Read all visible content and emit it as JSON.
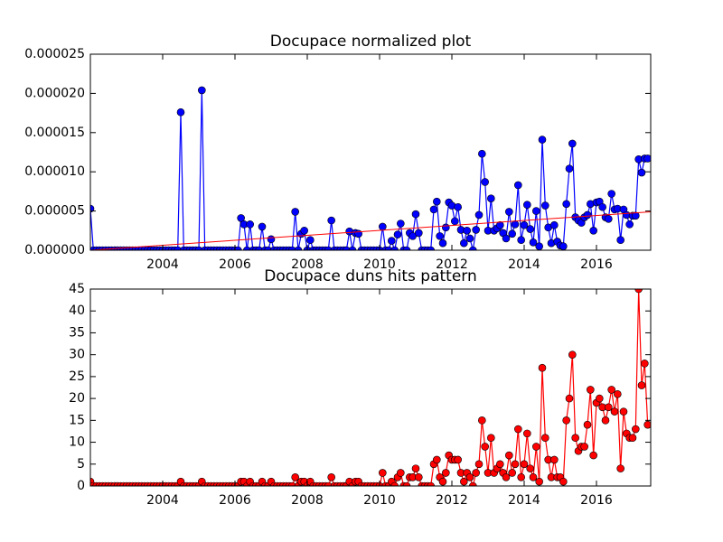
{
  "chart_data": {
    "type": "line",
    "x": [
      2002.0,
      2002.083,
      2002.167,
      2002.25,
      2002.333,
      2002.417,
      2002.5,
      2002.583,
      2002.667,
      2002.75,
      2002.833,
      2002.917,
      2003.0,
      2003.083,
      2003.167,
      2003.25,
      2003.333,
      2003.417,
      2003.5,
      2003.583,
      2003.667,
      2003.75,
      2003.833,
      2003.917,
      2004.0,
      2004.083,
      2004.167,
      2004.25,
      2004.333,
      2004.417,
      2004.5,
      2004.583,
      2004.667,
      2004.75,
      2004.833,
      2004.917,
      2005.0,
      2005.083,
      2005.167,
      2005.25,
      2005.333,
      2005.417,
      2005.5,
      2005.583,
      2005.667,
      2005.75,
      2005.833,
      2005.917,
      2006.0,
      2006.083,
      2006.167,
      2006.25,
      2006.333,
      2006.417,
      2006.5,
      2006.583,
      2006.667,
      2006.75,
      2006.833,
      2006.917,
      2007.0,
      2007.083,
      2007.167,
      2007.25,
      2007.333,
      2007.417,
      2007.5,
      2007.583,
      2007.667,
      2007.75,
      2007.833,
      2007.917,
      2008.0,
      2008.083,
      2008.167,
      2008.25,
      2008.333,
      2008.417,
      2008.5,
      2008.583,
      2008.667,
      2008.75,
      2008.833,
      2008.917,
      2009.0,
      2009.083,
      2009.167,
      2009.25,
      2009.333,
      2009.417,
      2009.5,
      2009.583,
      2009.667,
      2009.75,
      2009.833,
      2009.917,
      2010.0,
      2010.083,
      2010.167,
      2010.25,
      2010.333,
      2010.417,
      2010.5,
      2010.583,
      2010.667,
      2010.75,
      2010.833,
      2010.917,
      2011.0,
      2011.083,
      2011.167,
      2011.25,
      2011.333,
      2011.417,
      2011.5,
      2011.583,
      2011.667,
      2011.75,
      2011.833,
      2011.917,
      2012.0,
      2012.083,
      2012.167,
      2012.25,
      2012.333,
      2012.417,
      2012.5,
      2012.583,
      2012.667,
      2012.75,
      2012.833,
      2012.917,
      2013.0,
      2013.083,
      2013.167,
      2013.25,
      2013.333,
      2013.417,
      2013.5,
      2013.583,
      2013.667,
      2013.75,
      2013.833,
      2013.917,
      2014.0,
      2014.083,
      2014.167,
      2014.25,
      2014.333,
      2014.417,
      2014.5,
      2014.583,
      2014.667,
      2014.75,
      2014.833,
      2014.917,
      2015.0,
      2015.083,
      2015.167,
      2015.25,
      2015.333,
      2015.417,
      2015.5,
      2015.583,
      2015.667,
      2015.75,
      2015.833,
      2015.917,
      2016.0,
      2016.083,
      2016.167,
      2016.25,
      2016.333,
      2016.417,
      2016.5,
      2016.583,
      2016.667,
      2016.75,
      2016.833,
      2016.917,
      2017.0,
      2017.083,
      2017.167,
      2017.25,
      2017.333,
      2017.417
    ],
    "xlim": [
      2002.0,
      2017.5
    ],
    "xticks": [
      2004,
      2006,
      2008,
      2010,
      2012,
      2014,
      2016
    ],
    "panels": [
      {
        "title": "Docupace normalized plot",
        "ylim": [
          0,
          2.5e-05
        ],
        "yticks": [
          {
            "value": 0,
            "label": "0.000000"
          },
          {
            "value": 5e-06,
            "label": "0.000005"
          },
          {
            "value": 1e-05,
            "label": "0.000010"
          },
          {
            "value": 1.5e-05,
            "label": "0.000015"
          },
          {
            "value": 2e-05,
            "label": "0.000020"
          },
          {
            "value": 2.5e-05,
            "label": "0.000025"
          }
        ],
        "series": [
          {
            "color": "#0000ff",
            "values": [
              5.3e-06,
              0,
              0,
              0,
              0,
              0,
              0,
              0,
              0,
              0,
              0,
              0,
              0,
              0,
              0,
              0,
              0,
              0,
              0,
              0,
              0,
              0,
              0,
              0,
              0,
              0,
              0,
              0,
              0,
              0,
              1.76e-05,
              0,
              0,
              0,
              0,
              0,
              0,
              2.04e-05,
              0,
              0,
              0,
              0,
              0,
              0,
              0,
              0,
              0,
              0,
              0,
              0,
              4.1e-06,
              3.3e-06,
              0,
              3.3e-06,
              0,
              0,
              0,
              3e-06,
              0,
              0,
              1.4e-06,
              0,
              0,
              0,
              0,
              0,
              0,
              0,
              4.9e-06,
              0,
              2.1e-06,
              2.5e-06,
              0,
              1.3e-06,
              0,
              0,
              0,
              0,
              0,
              0,
              3.8e-06,
              0,
              0,
              0,
              0,
              0,
              2.4e-06,
              0,
              2.2e-06,
              2.1e-06,
              0,
              0,
              0,
              0,
              0,
              0,
              0,
              3e-06,
              0,
              0,
              1.2e-06,
              0,
              2e-06,
              3.4e-06,
              0,
              0,
              2.2e-06,
              1.8e-06,
              4.6e-06,
              2.2e-06,
              0,
              0,
              0,
              0,
              5.2e-06,
              6.2e-06,
              1.8e-06,
              9e-07,
              2.9e-06,
              6.1e-06,
              5.7e-06,
              3.7e-06,
              5.5e-06,
              2.6e-06,
              9e-07,
              2.5e-06,
              1.5e-06,
              0,
              2.6e-06,
              4.5e-06,
              1.23e-05,
              8.7e-06,
              2.5e-06,
              6.6e-06,
              2.5e-06,
              2.8e-06,
              3.2e-06,
              2.2e-06,
              1.5e-06,
              4.9e-06,
              2.1e-06,
              3.3e-06,
              8.3e-06,
              1.3e-06,
              3.2e-06,
              5.8e-06,
              2.7e-06,
              1e-06,
              5e-06,
              5e-07,
              1.41e-05,
              5.7e-06,
              2.9e-06,
              9e-07,
              3.2e-06,
              1.1e-06,
              6e-07,
              5e-07,
              5.9e-06,
              1.04e-05,
              1.36e-05,
              4.2e-06,
              3.8e-06,
              3.5e-06,
              4.2e-06,
              4.5e-06,
              5.9e-06,
              2.5e-06,
              6.1e-06,
              6.2e-06,
              5.5e-06,
              4.2e-06,
              4e-06,
              7.2e-06,
              5.2e-06,
              5.3e-06,
              1.3e-06,
              5.2e-06,
              4.5e-06,
              3.3e-06,
              4.4e-06,
              4.4e-06,
              1.16e-05,
              9.9e-06,
              1.17e-05,
              1.17e-05
            ]
          }
        ],
        "trend": {
          "x": [
            2002.0,
            2017.5
          ],
          "values": [
            0,
            4.9e-06
          ],
          "color": "#ff0000"
        }
      },
      {
        "title": "Docupace duns hits pattern",
        "ylim": [
          0,
          45
        ],
        "yticks": [
          0,
          5,
          10,
          15,
          20,
          25,
          30,
          35,
          40,
          45
        ],
        "series": [
          {
            "color": "#ff0000",
            "values": [
              1,
              0,
              0,
              0,
              0,
              0,
              0,
              0,
              0,
              0,
              0,
              0,
              0,
              0,
              0,
              0,
              0,
              0,
              0,
              0,
              0,
              0,
              0,
              0,
              0,
              0,
              0,
              0,
              0,
              0,
              1,
              0,
              0,
              0,
              0,
              0,
              0,
              1,
              0,
              0,
              0,
              0,
              0,
              0,
              0,
              0,
              0,
              0,
              0,
              0,
              1,
              1,
              0,
              1,
              0,
              0,
              0,
              1,
              0,
              0,
              1,
              0,
              0,
              0,
              0,
              0,
              0,
              0,
              2,
              0,
              1,
              1,
              0,
              1,
              0,
              0,
              0,
              0,
              0,
              0,
              2,
              0,
              0,
              0,
              0,
              0,
              1,
              0,
              1,
              1,
              0,
              0,
              0,
              0,
              0,
              0,
              0,
              3,
              0,
              0,
              1,
              0,
              2,
              3,
              0,
              0,
              2,
              2,
              4,
              2,
              0,
              0,
              0,
              0,
              5,
              6,
              2,
              1,
              3,
              7,
              6,
              6,
              6,
              3,
              1,
              3,
              2,
              0,
              3,
              5,
              15,
              9,
              3,
              11,
              3,
              4,
              5,
              3,
              2,
              7,
              3,
              5,
              13,
              2,
              5,
              12,
              4,
              2,
              9,
              1,
              27,
              11,
              6,
              2,
              6,
              2,
              2,
              1,
              15,
              20,
              30,
              11,
              8,
              9,
              9,
              14,
              22,
              7,
              19,
              20,
              18,
              15,
              18,
              22,
              17,
              21,
              4,
              17,
              12,
              11,
              11,
              13,
              45,
              23,
              28,
              14
            ]
          }
        ]
      }
    ]
  }
}
